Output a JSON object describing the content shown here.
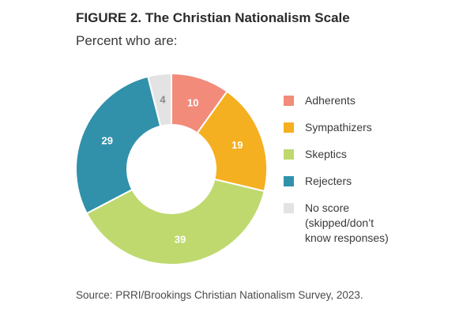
{
  "header": {
    "title": "FIGURE 2.  The Christian Nationalism Scale",
    "subtitle": "Percent who are:"
  },
  "source": "Source: PRRI/Brookings Christian Nationalism Survey, 2023.",
  "chart_data": {
    "type": "pie",
    "donut": true,
    "categories": [
      "Adherents",
      "Sympathizers",
      "Skeptics",
      "Rejecters",
      "No score\n(skipped/don’t\nknow responses)"
    ],
    "values": [
      10,
      19,
      39,
      29,
      4
    ],
    "colors": [
      "#f28b7a",
      "#f5b021",
      "#bfd96f",
      "#3191ab",
      "#e3e3e3"
    ],
    "label_colors": [
      "#ffffff",
      "#ffffff",
      "#ffffff",
      "#ffffff",
      "#8a8a8a"
    ],
    "legend_position": "right"
  }
}
